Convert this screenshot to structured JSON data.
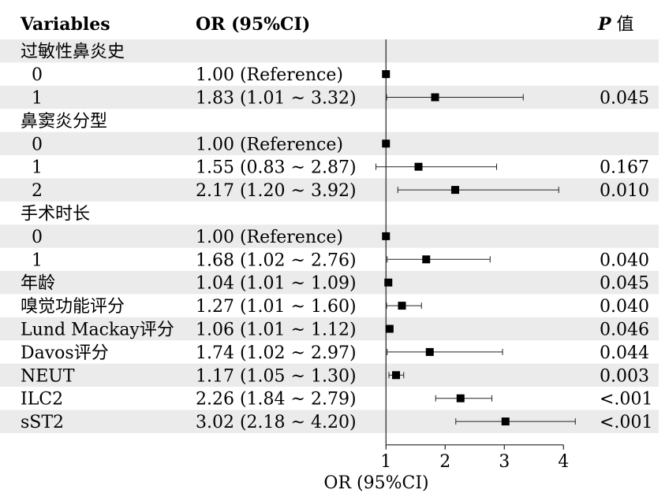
{
  "headers": {
    "variables": "Variables",
    "or": "OR (95%CI)",
    "p_bold": "P",
    "p_rest": " 值"
  },
  "chart_data": {
    "type": "forest",
    "xlabel": "OR (95%CI)",
    "xlim": [
      0.65,
      4.25
    ],
    "xticks": [
      1,
      2,
      3,
      4
    ],
    "reference_line": 1,
    "grid": false,
    "rows": [
      {
        "label": "过敏性鼻炎史",
        "group": true
      },
      {
        "label": "0",
        "or_text": "1.00 (Reference)",
        "or": 1.0,
        "lo": 1.0,
        "hi": 1.0,
        "p": ""
      },
      {
        "label": "1",
        "or_text": "1.83 (1.01 ~ 3.32)",
        "or": 1.83,
        "lo": 1.01,
        "hi": 3.32,
        "p": "0.045"
      },
      {
        "label": "鼻窦炎分型",
        "group": true
      },
      {
        "label": "0",
        "or_text": "1.00 (Reference)",
        "or": 1.0,
        "lo": 1.0,
        "hi": 1.0,
        "p": ""
      },
      {
        "label": "1",
        "or_text": "1.55 (0.83 ~ 2.87)",
        "or": 1.55,
        "lo": 0.83,
        "hi": 2.87,
        "p": "0.167"
      },
      {
        "label": "2",
        "or_text": "2.17 (1.20 ~ 3.92)",
        "or": 2.17,
        "lo": 1.2,
        "hi": 3.92,
        "p": "0.010"
      },
      {
        "label": "手术时长",
        "group": true
      },
      {
        "label": "0",
        "or_text": "1.00 (Reference)",
        "or": 1.0,
        "lo": 1.0,
        "hi": 1.0,
        "p": ""
      },
      {
        "label": "1",
        "or_text": "1.68 (1.02 ~ 2.76)",
        "or": 1.68,
        "lo": 1.02,
        "hi": 2.76,
        "p": "0.040"
      },
      {
        "label": "年龄",
        "or_text": "1.04 (1.01 ~ 1.09)",
        "or": 1.04,
        "lo": 1.01,
        "hi": 1.09,
        "p": "0.045"
      },
      {
        "label": "嗅觉功能评分",
        "or_text": "1.27 (1.01 ~ 1.60)",
        "or": 1.27,
        "lo": 1.01,
        "hi": 1.6,
        "p": "0.040"
      },
      {
        "label": "Lund Mackay评分",
        "or_text": "1.06 (1.01 ~ 1.12)",
        "or": 1.06,
        "lo": 1.01,
        "hi": 1.12,
        "p": "0.046"
      },
      {
        "label": "Davos评分",
        "or_text": "1.74 (1.02 ~ 2.97)",
        "or": 1.74,
        "lo": 1.02,
        "hi": 2.97,
        "p": "0.044"
      },
      {
        "label": "NEUT",
        "or_text": "1.17 (1.05 ~ 1.30)",
        "or": 1.17,
        "lo": 1.05,
        "hi": 1.3,
        "p": "0.003"
      },
      {
        "label": "ILC2",
        "or_text": "2.26 (1.84 ~ 2.79)",
        "or": 2.26,
        "lo": 1.84,
        "hi": 2.79,
        "p": "<.001"
      },
      {
        "label": "sST2",
        "or_text": "3.02 (2.18 ~ 4.20)",
        "or": 3.02,
        "lo": 2.18,
        "hi": 4.2,
        "p": "<.001"
      }
    ]
  }
}
